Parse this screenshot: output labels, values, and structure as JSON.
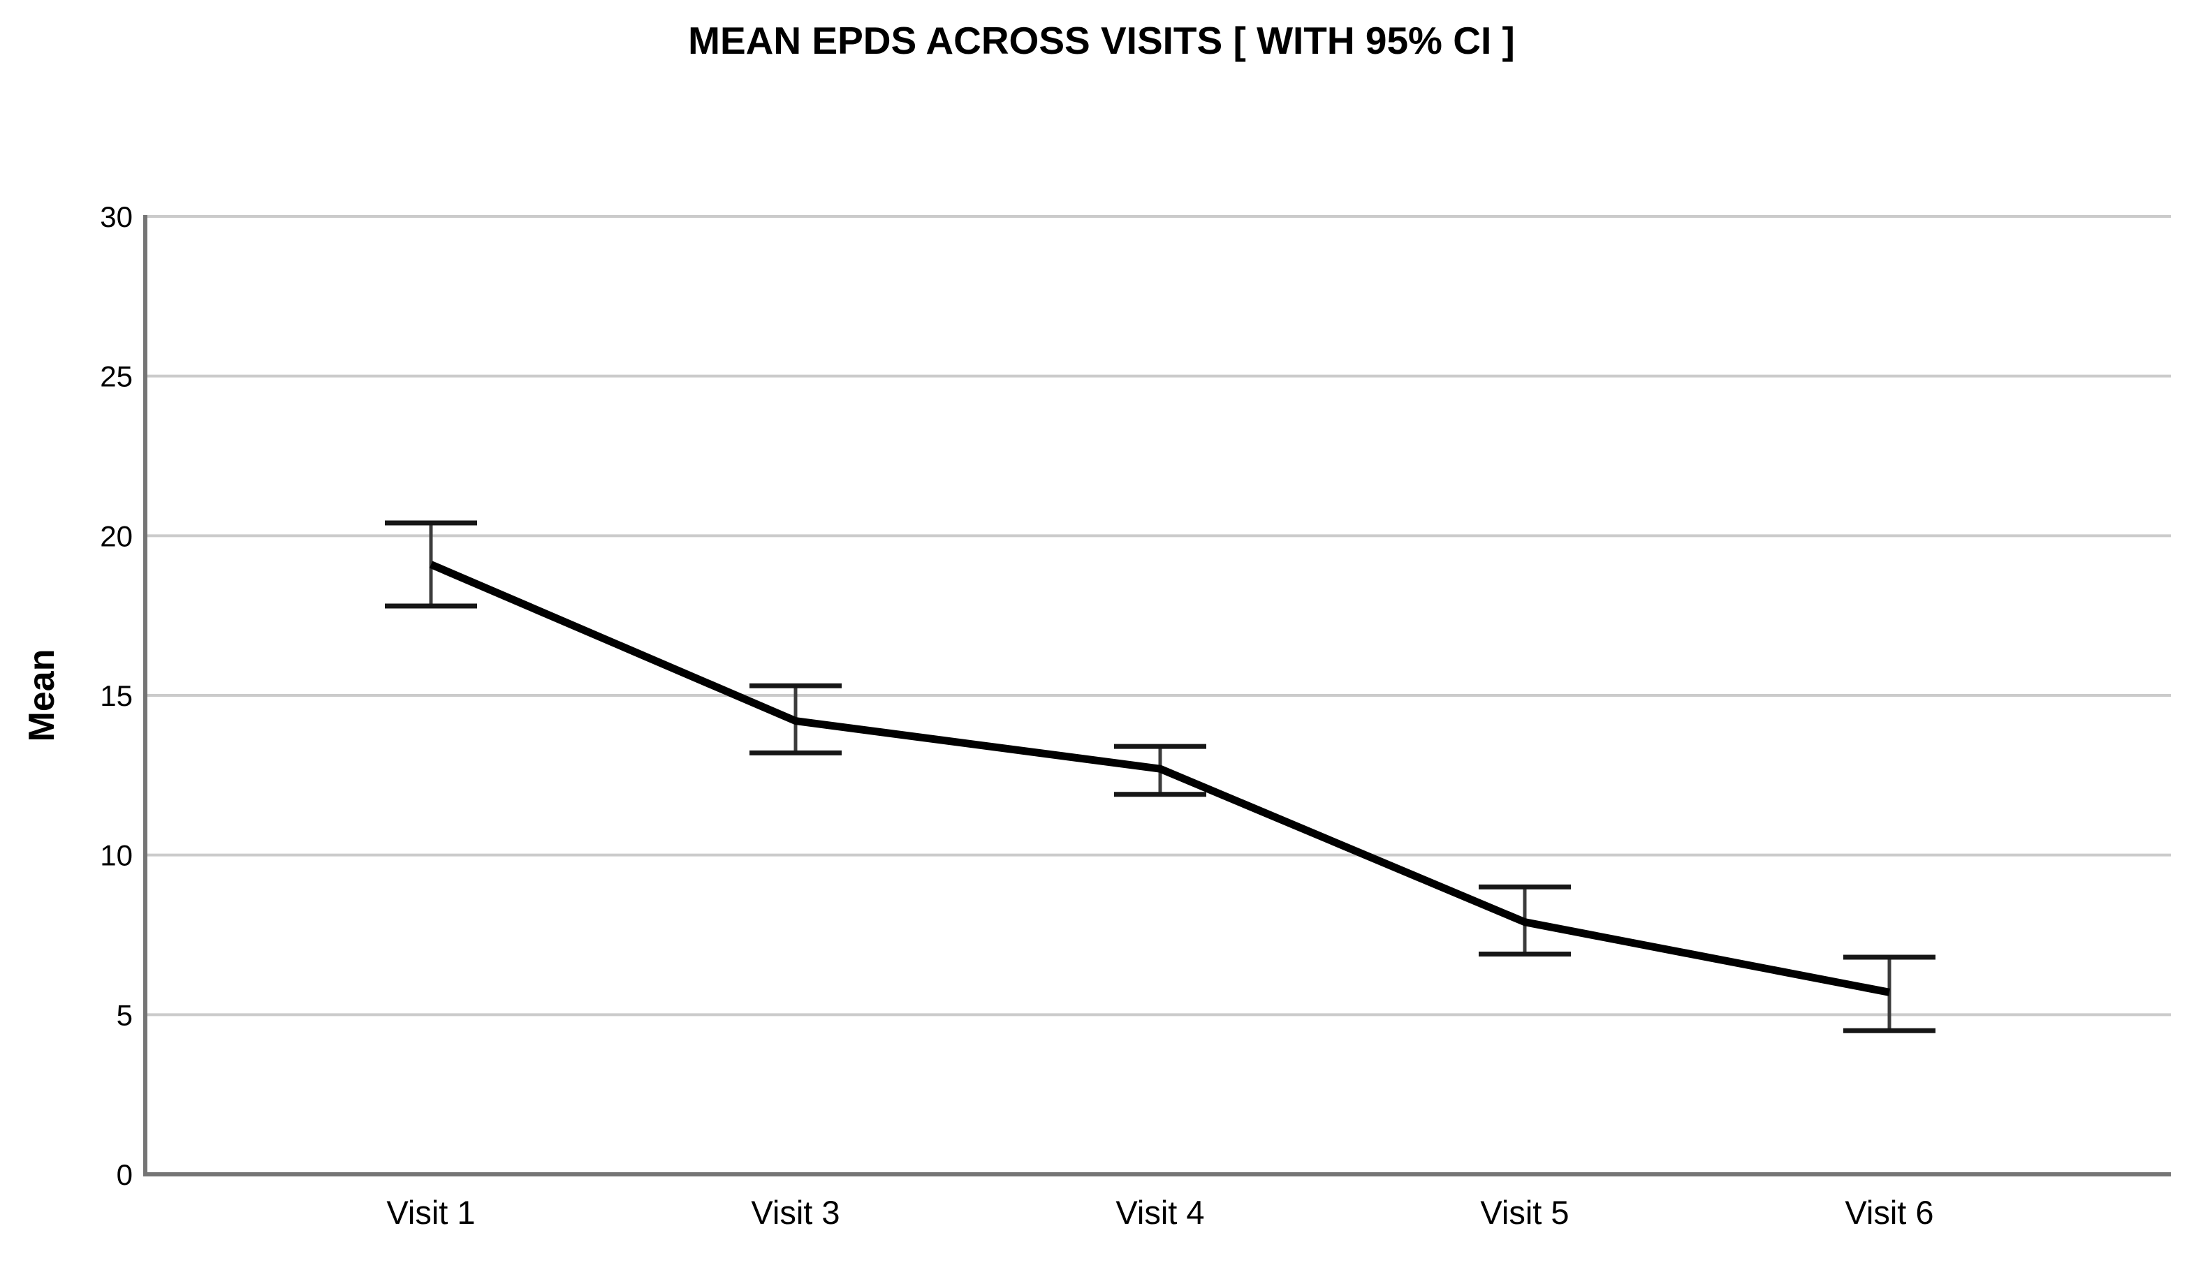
{
  "chart_data": {
    "type": "line",
    "title": "MEAN EPDS ACROSS VISITS [ WITH 95% CI ]",
    "xlabel": "",
    "ylabel": "Mean",
    "categories": [
      "Visit 1",
      "Visit 3",
      "Visit 4",
      "Visit 5",
      "Visit 6"
    ],
    "series": [
      {
        "name": "Mean EPDS",
        "values": [
          19.1,
          14.2,
          12.7,
          7.9,
          5.7
        ],
        "ci_low": [
          17.8,
          13.2,
          11.9,
          6.9,
          4.5
        ],
        "ci_high": [
          20.4,
          15.3,
          13.4,
          9.0,
          6.8
        ]
      }
    ],
    "ylim": [
      0,
      30
    ],
    "yticks": [
      0,
      5,
      10,
      15,
      20,
      25,
      30
    ],
    "grid": true,
    "legend": "none",
    "error_bars": "95% CI",
    "line_color": "#000000",
    "background_color": "#ffffff"
  }
}
